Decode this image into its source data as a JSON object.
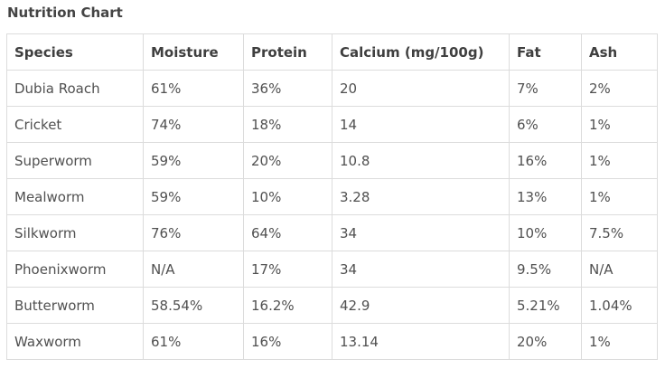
{
  "page": {
    "title": "Nutrition Chart"
  },
  "table": {
    "headers": [
      "Species",
      "Moisture",
      "Protein",
      "Calcium (mg/100g)",
      "Fat",
      "Ash"
    ],
    "rows": [
      [
        "Dubia Roach",
        "61%",
        "36%",
        "20",
        "7%",
        "2%"
      ],
      [
        "Cricket",
        "74%",
        "18%",
        "14",
        "6%",
        "1%"
      ],
      [
        "Superworm",
        "59%",
        "20%",
        "10.8",
        "16%",
        "1%"
      ],
      [
        "Mealworm",
        "59%",
        "10%",
        "3.28",
        "13%",
        "1%"
      ],
      [
        "Silkworm",
        "76%",
        "64%",
        "34",
        "10%",
        "7.5%"
      ],
      [
        "Phoenixworm",
        "N/A",
        "17%",
        "34",
        "9.5%",
        "N/A"
      ],
      [
        "Butterworm",
        "58.54%",
        "16.2%",
        "42.9",
        "5.21%",
        "1.04%"
      ],
      [
        "Waxworm",
        "61%",
        "16%",
        "13.14",
        "20%",
        "1%"
      ]
    ]
  }
}
